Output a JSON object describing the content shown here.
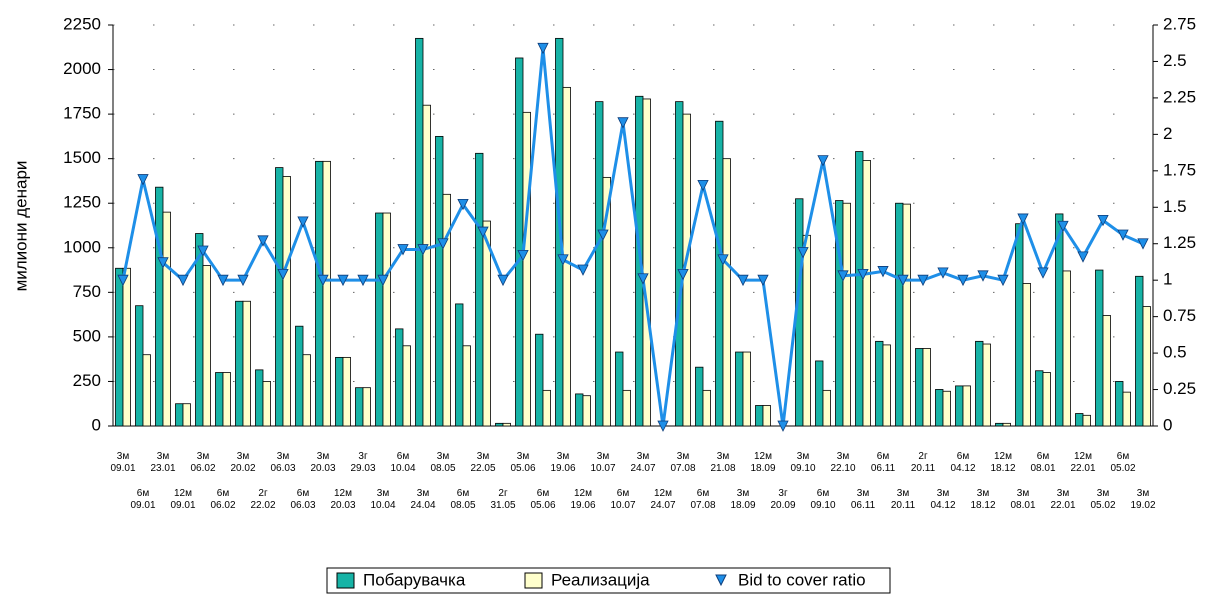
{
  "chart_data": {
    "type": "bar_line",
    "y_label": "милиони денари",
    "categories": [
      "3м 09.01",
      "6м 09.01",
      "3м 23.01",
      "12м 09.01",
      "3м 06.02",
      "6м 06.02",
      "3м 20.02",
      "2г 22.02",
      "3м 06.03",
      "6м 06.03",
      "3м 20.03",
      "12м 20.03",
      "3г 29.03",
      "3м 10.04",
      "6м 10.04",
      "3м 24.04",
      "3м 08.05",
      "6м 08.05",
      "3м 22.05",
      "2г 31.05",
      "3м 05.06",
      "6м 05.06",
      "3м 19.06",
      "12м 19.06",
      "3м 10.07",
      "6м 10.07",
      "3м 24.07",
      "12м 24.07",
      "3м 07.08",
      "6м 07.08",
      "3м 21.08",
      "3м 18.09",
      "12м 18.09",
      "3г 20.09",
      "3м 09.10",
      "6м 09.10",
      "3м 22.10",
      "3м 06.11",
      "6м 06.11",
      "3м 20.11",
      "2г 20.11",
      "3м 04.12",
      "6м 04.12",
      "3м 18.12",
      "12м 18.12",
      "3м 08.01",
      "6м 08.01",
      "3м 22.01",
      "12м 22.01",
      "3м 05.02",
      "6м 05.02",
      "3м 19.02"
    ],
    "series": [
      {
        "name": "Побарувачка",
        "color": "#17b3a6",
        "values": [
          885,
          675,
          1340,
          125,
          1080,
          300,
          700,
          315,
          1450,
          560,
          1485,
          385,
          215,
          1195,
          545,
          2175,
          1625,
          685,
          1530,
          15,
          2065,
          515,
          2175,
          180,
          1820,
          415,
          1850,
          0,
          1820,
          330,
          1710,
          415,
          115,
          0,
          1275,
          365,
          1265,
          1540,
          475,
          1250,
          435,
          205,
          225,
          475,
          15,
          1135,
          310,
          1190,
          70,
          875,
          250,
          840
        ]
      },
      {
        "name": "Реализација",
        "color": "#ffffcc",
        "values": [
          885,
          400,
          1200,
          125,
          900,
          300,
          700,
          250,
          1400,
          400,
          1485,
          385,
          215,
          1195,
          450,
          1800,
          1300,
          450,
          1150,
          15,
          1760,
          200,
          1900,
          170,
          1395,
          200,
          1835,
          0,
          1750,
          200,
          1500,
          415,
          115,
          0,
          1070,
          200,
          1250,
          1490,
          455,
          1245,
          435,
          195,
          225,
          460,
          15,
          800,
          300,
          870,
          60,
          620,
          190,
          670
        ]
      },
      {
        "name": "Bid to cover ratio",
        "color": "#1e8fe8",
        "axis": "y2",
        "values": [
          1.0,
          1.69,
          1.12,
          1.0,
          1.2,
          1.0,
          1.0,
          1.27,
          1.04,
          1.4,
          1.0,
          1.0,
          1.0,
          1.0,
          1.21,
          1.21,
          1.25,
          1.52,
          1.33,
          1.0,
          1.17,
          2.59,
          1.14,
          1.07,
          1.31,
          2.08,
          1.01,
          0,
          1.04,
          1.65,
          1.14,
          1.0,
          1.0,
          0,
          1.19,
          1.82,
          1.03,
          1.04,
          1.06,
          1.0,
          1.0,
          1.05,
          1.0,
          1.03,
          1.0,
          1.42,
          1.05,
          1.37,
          1.16,
          1.41,
          1.31,
          1.25
        ]
      }
    ],
    "ylim": [
      0,
      2250
    ],
    "yticks": [
      0,
      250,
      500,
      750,
      1000,
      1250,
      1500,
      1750,
      2000,
      2250
    ],
    "y2lim": [
      0,
      2.75
    ],
    "y2ticks": [
      0,
      0.25,
      0.5,
      0.75,
      1,
      1.25,
      1.5,
      1.75,
      2,
      2.25,
      2.5,
      2.75
    ],
    "grid": true
  }
}
